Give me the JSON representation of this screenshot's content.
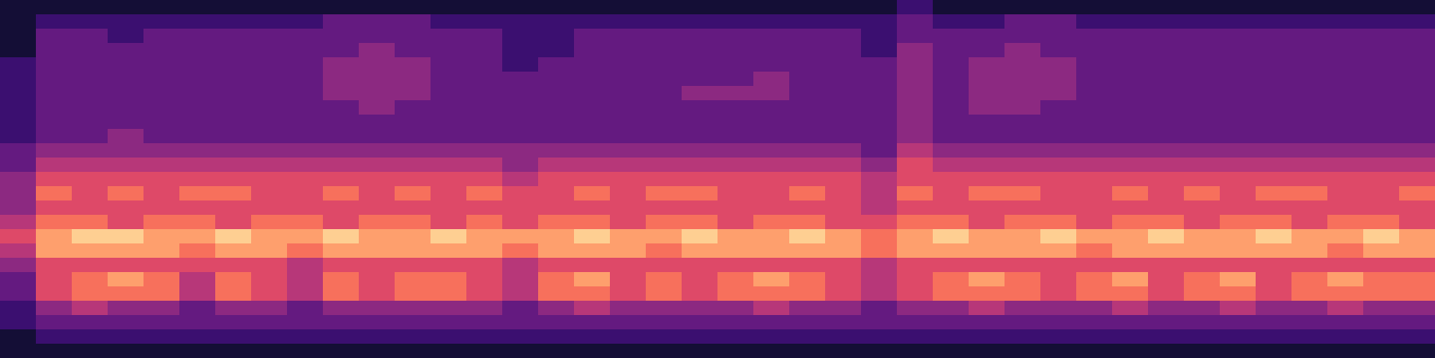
{
  "chart_data": {
    "type": "heatmap",
    "tick_labels": false,
    "zlim": [
      0,
      10
    ],
    "z": [
      [
        1,
        1,
        1,
        1,
        1,
        1,
        1,
        1,
        1,
        1,
        1,
        1,
        1,
        1,
        1,
        1,
        1,
        1,
        1,
        1,
        1,
        1,
        1,
        1,
        1,
        2,
        1,
        1,
        1,
        1,
        1,
        1,
        1,
        1,
        1,
        1,
        1,
        1,
        1,
        1
      ],
      [
        1,
        2,
        2,
        2,
        2,
        2,
        2,
        2,
        2,
        3,
        3,
        3,
        2,
        2,
        2,
        2,
        2,
        2,
        2,
        2,
        2,
        2,
        2,
        2,
        2,
        3,
        2,
        2,
        3,
        3,
        2,
        2,
        2,
        2,
        2,
        2,
        2,
        2,
        2,
        2
      ],
      [
        1,
        3,
        3,
        2,
        3,
        3,
        3,
        3,
        3,
        3,
        3,
        3,
        3,
        3,
        2,
        2,
        3,
        3,
        3,
        3,
        3,
        3,
        3,
        3,
        2,
        3,
        3,
        3,
        3,
        3,
        3,
        3,
        3,
        3,
        3,
        3,
        3,
        3,
        3,
        3
      ],
      [
        1,
        3,
        3,
        3,
        3,
        3,
        3,
        3,
        3,
        3,
        4,
        3,
        3,
        3,
        2,
        2,
        3,
        3,
        3,
        3,
        3,
        3,
        3,
        3,
        2,
        4,
        3,
        3,
        4,
        3,
        3,
        3,
        3,
        3,
        3,
        3,
        3,
        3,
        3,
        3
      ],
      [
        2,
        3,
        3,
        3,
        3,
        3,
        3,
        3,
        3,
        4,
        4,
        4,
        3,
        3,
        2,
        3,
        3,
        3,
        3,
        3,
        3,
        3,
        3,
        3,
        3,
        4,
        3,
        4,
        4,
        4,
        3,
        3,
        3,
        3,
        3,
        3,
        3,
        3,
        3,
        3
      ],
      [
        2,
        3,
        3,
        3,
        3,
        3,
        3,
        3,
        3,
        4,
        4,
        4,
        3,
        3,
        3,
        3,
        3,
        3,
        3,
        3,
        3,
        4,
        3,
        3,
        3,
        4,
        3,
        4,
        4,
        4,
        3,
        3,
        3,
        3,
        3,
        3,
        3,
        3,
        3,
        3
      ],
      [
        2,
        3,
        3,
        3,
        3,
        3,
        3,
        3,
        3,
        4,
        4,
        4,
        3,
        3,
        3,
        3,
        3,
        3,
        3,
        4,
        4,
        4,
        3,
        3,
        3,
        4,
        3,
        4,
        4,
        4,
        3,
        3,
        3,
        3,
        3,
        3,
        3,
        3,
        3,
        3
      ],
      [
        2,
        3,
        3,
        3,
        3,
        3,
        3,
        3,
        3,
        3,
        4,
        3,
        3,
        3,
        3,
        3,
        3,
        3,
        3,
        3,
        3,
        3,
        3,
        3,
        3,
        4,
        3,
        4,
        4,
        3,
        3,
        3,
        3,
        3,
        3,
        3,
        3,
        3,
        3,
        3
      ],
      [
        2,
        3,
        3,
        3,
        3,
        3,
        3,
        3,
        3,
        3,
        3,
        3,
        3,
        3,
        3,
        3,
        3,
        3,
        3,
        3,
        3,
        3,
        3,
        3,
        3,
        4,
        3,
        3,
        3,
        3,
        3,
        3,
        3,
        3,
        3,
        3,
        3,
        3,
        3,
        3
      ],
      [
        2,
        3,
        3,
        4,
        3,
        3,
        3,
        3,
        3,
        3,
        3,
        3,
        3,
        3,
        3,
        3,
        3,
        3,
        3,
        3,
        3,
        3,
        3,
        3,
        3,
        4,
        3,
        3,
        3,
        3,
        3,
        3,
        3,
        3,
        3,
        3,
        3,
        3,
        3,
        3
      ],
      [
        3,
        4,
        4,
        4,
        4,
        4,
        4,
        4,
        4,
        4,
        4,
        4,
        4,
        4,
        4,
        4,
        4,
        4,
        4,
        4,
        4,
        4,
        4,
        4,
        3,
        5,
        4,
        4,
        4,
        4,
        4,
        4,
        4,
        4,
        4,
        4,
        4,
        4,
        4,
        4
      ],
      [
        3,
        5,
        5,
        5,
        5,
        5,
        5,
        5,
        5,
        5,
        5,
        5,
        5,
        5,
        4,
        5,
        5,
        5,
        5,
        5,
        5,
        5,
        5,
        5,
        4,
        6,
        5,
        5,
        5,
        5,
        5,
        5,
        5,
        5,
        5,
        5,
        5,
        5,
        5,
        5
      ],
      [
        4,
        6,
        6,
        6,
        6,
        6,
        6,
        6,
        6,
        6,
        6,
        6,
        6,
        6,
        5,
        6,
        6,
        6,
        6,
        6,
        6,
        6,
        6,
        6,
        5,
        6,
        6,
        6,
        6,
        6,
        6,
        6,
        6,
        6,
        6,
        6,
        6,
        6,
        6,
        6
      ],
      [
        4,
        7,
        6,
        7,
        6,
        7,
        7,
        6,
        6,
        7,
        6,
        7,
        6,
        7,
        6,
        6,
        7,
        6,
        7,
        7,
        6,
        6,
        7,
        6,
        5,
        7,
        6,
        7,
        7,
        6,
        6,
        7,
        6,
        7,
        6,
        7,
        7,
        6,
        6,
        7
      ],
      [
        4,
        6,
        6,
        6,
        6,
        6,
        6,
        6,
        6,
        6,
        6,
        6,
        6,
        6,
        6,
        6,
        6,
        6,
        6,
        6,
        6,
        6,
        6,
        6,
        5,
        6,
        6,
        6,
        6,
        6,
        6,
        6,
        6,
        6,
        6,
        6,
        6,
        6,
        6,
        6
      ],
      [
        5,
        7,
        7,
        6,
        7,
        7,
        6,
        7,
        7,
        6,
        7,
        7,
        6,
        7,
        6,
        7,
        7,
        6,
        7,
        7,
        6,
        7,
        7,
        6,
        6,
        7,
        7,
        6,
        7,
        7,
        6,
        7,
        7,
        6,
        7,
        7,
        6,
        7,
        7,
        6
      ],
      [
        6,
        8,
        9,
        9,
        8,
        8,
        9,
        8,
        8,
        9,
        8,
        8,
        9,
        8,
        8,
        8,
        9,
        8,
        8,
        9,
        8,
        8,
        9,
        8,
        7,
        8,
        9,
        8,
        8,
        9,
        8,
        8,
        9,
        8,
        8,
        9,
        8,
        8,
        9,
        8
      ],
      [
        5,
        8,
        8,
        8,
        8,
        7,
        8,
        8,
        7,
        8,
        8,
        8,
        8,
        8,
        7,
        8,
        8,
        8,
        7,
        8,
        8,
        8,
        8,
        8,
        7,
        8,
        8,
        8,
        8,
        8,
        7,
        8,
        8,
        8,
        8,
        8,
        8,
        7,
        8,
        8
      ],
      [
        4,
        6,
        6,
        6,
        6,
        6,
        6,
        6,
        5,
        6,
        6,
        6,
        6,
        6,
        5,
        6,
        6,
        6,
        6,
        6,
        6,
        6,
        6,
        6,
        5,
        6,
        6,
        6,
        6,
        6,
        6,
        6,
        6,
        6,
        6,
        6,
        6,
        6,
        6,
        6
      ],
      [
        3,
        6,
        7,
        8,
        7,
        5,
        7,
        6,
        5,
        7,
        6,
        7,
        7,
        6,
        5,
        7,
        8,
        6,
        7,
        6,
        7,
        8,
        7,
        6,
        5,
        6,
        7,
        8,
        7,
        6,
        7,
        8,
        6,
        7,
        8,
        6,
        7,
        8,
        7,
        7
      ],
      [
        3,
        6,
        7,
        7,
        7,
        5,
        7,
        6,
        5,
        7,
        6,
        7,
        7,
        6,
        5,
        7,
        7,
        6,
        7,
        6,
        7,
        7,
        7,
        6,
        5,
        6,
        7,
        7,
        7,
        6,
        7,
        7,
        6,
        7,
        7,
        6,
        7,
        7,
        7,
        7
      ],
      [
        2,
        4,
        5,
        4,
        4,
        3,
        4,
        4,
        3,
        4,
        4,
        4,
        4,
        4,
        3,
        4,
        5,
        4,
        4,
        4,
        4,
        5,
        4,
        4,
        3,
        4,
        4,
        5,
        4,
        4,
        4,
        5,
        4,
        4,
        5,
        4,
        4,
        5,
        4,
        4
      ],
      [
        2,
        3,
        3,
        3,
        3,
        3,
        3,
        3,
        3,
        3,
        3,
        3,
        3,
        3,
        3,
        3,
        3,
        3,
        3,
        3,
        3,
        3,
        3,
        3,
        3,
        3,
        3,
        3,
        3,
        3,
        3,
        3,
        3,
        3,
        3,
        3,
        3,
        3,
        3,
        3
      ],
      [
        1,
        2,
        2,
        2,
        2,
        2,
        2,
        2,
        2,
        2,
        2,
        2,
        2,
        2,
        2,
        2,
        2,
        2,
        2,
        2,
        2,
        2,
        2,
        2,
        2,
        2,
        2,
        2,
        2,
        2,
        2,
        2,
        2,
        2,
        2,
        2,
        2,
        2,
        2,
        2
      ],
      [
        1,
        1,
        1,
        1,
        1,
        1,
        1,
        1,
        1,
        1,
        1,
        1,
        1,
        1,
        1,
        1,
        1,
        1,
        1,
        1,
        1,
        1,
        1,
        1,
        1,
        1,
        1,
        1,
        1,
        1,
        1,
        1,
        1,
        1,
        1,
        1,
        1,
        1,
        1,
        1
      ]
    ]
  }
}
